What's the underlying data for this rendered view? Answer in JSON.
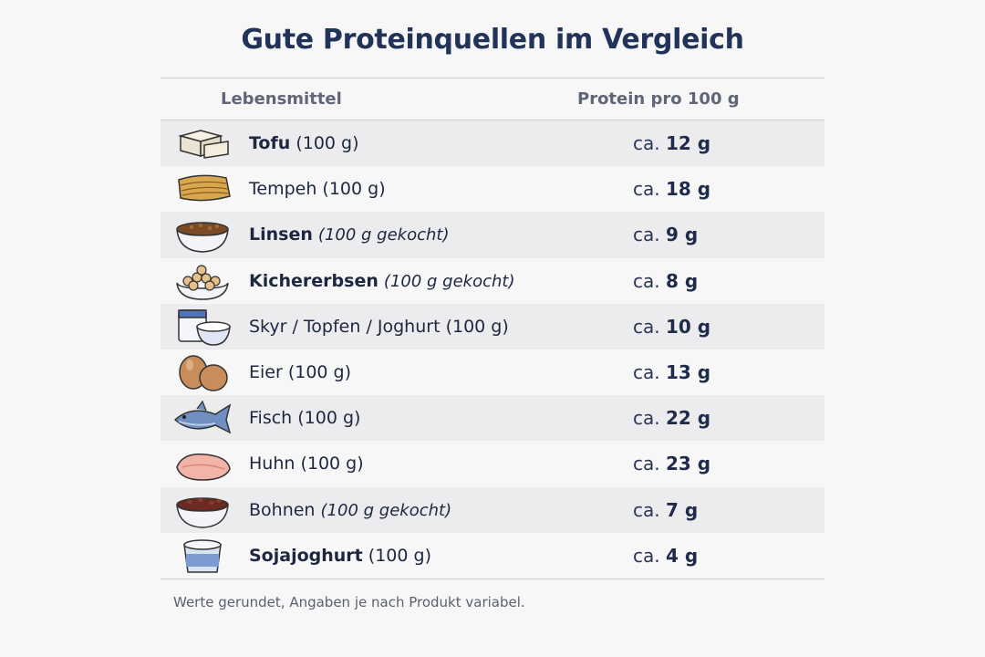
{
  "title": "Gute Proteinquellen im Vergleich",
  "headers": {
    "food": "Lebensmittel",
    "protein": "Protein pro 100 g"
  },
  "rows": [
    {
      "icon": "tofu-icon",
      "name": "Tofu",
      "qty": "(100 g)",
      "qty_italic": false,
      "bold": true,
      "prefix": "ca.",
      "value": "12 g"
    },
    {
      "icon": "tempeh-icon",
      "name": "Tempeh",
      "qty": "(100 g)",
      "qty_italic": false,
      "bold": false,
      "prefix": "ca.",
      "value": "18 g"
    },
    {
      "icon": "lentils-icon",
      "name": "Linsen",
      "qty": "(100 g gekocht)",
      "qty_italic": true,
      "bold": true,
      "prefix": "ca.",
      "value": "9 g"
    },
    {
      "icon": "chickpeas-icon",
      "name": "Kichererbsen",
      "qty": "(100 g gekocht)",
      "qty_italic": true,
      "bold": true,
      "prefix": "ca.",
      "value": "8 g"
    },
    {
      "icon": "skyr-icon",
      "name": "Skyr / Topfen / Joghurt",
      "qty": "(100 g)",
      "qty_italic": false,
      "bold": false,
      "prefix": "ca.",
      "value": "10 g"
    },
    {
      "icon": "eggs-icon",
      "name": "Eier",
      "qty": "(100 g)",
      "qty_italic": false,
      "bold": false,
      "prefix": "ca.",
      "value": "13 g"
    },
    {
      "icon": "fish-icon",
      "name": "Fisch",
      "qty": "(100 g)",
      "qty_italic": false,
      "bold": false,
      "prefix": "ca.",
      "value": "22 g"
    },
    {
      "icon": "chicken-icon",
      "name": "Huhn",
      "qty": "(100 g)",
      "qty_italic": false,
      "bold": false,
      "prefix": "ca.",
      "value": "23 g"
    },
    {
      "icon": "beans-icon",
      "name": "Bohnen",
      "qty": "(100 g gekocht)",
      "qty_italic": true,
      "bold": false,
      "prefix": "ca.",
      "value": "7 g"
    },
    {
      "icon": "soy-yogurt-icon",
      "name": "Sojajoghurt",
      "qty": "(100 g)",
      "qty_italic": false,
      "bold": true,
      "prefix": "ca.",
      "value": "4 g"
    }
  ],
  "footnote": "Werte gerundet, Angaben je nach Produkt variabel."
}
